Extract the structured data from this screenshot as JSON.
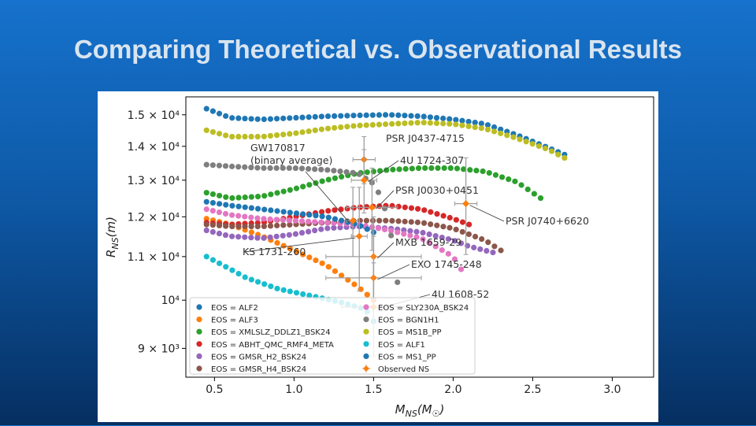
{
  "slide": {
    "title": "Comparing Theoretical vs. Observational Results"
  },
  "chart_data": {
    "type": "scatter",
    "xlabel": "M_NS(M☉)",
    "ylabel": "R_NS(m)",
    "xlim": [
      0.32,
      3.26
    ],
    "ylim": [
      8450,
      15600
    ],
    "y_scale": "log",
    "grid": false,
    "legend_position": "lower-left",
    "x_ticks": [
      "0.5",
      "1.0",
      "1.5",
      "2.0",
      "2.5",
      "3.0"
    ],
    "y_ticks": [
      "9 × 10³",
      "10⁴",
      "1.1 × 10⁴",
      "1.2 × 10⁴",
      "1.3 × 10⁴",
      "1.4 × 10⁴",
      "1.5 × 10⁴"
    ],
    "x_tick_values": [
      0.5,
      1.0,
      1.5,
      2.0,
      2.5,
      3.0
    ],
    "y_tick_values": [
      9000,
      10000,
      11000,
      12000,
      13000,
      14000,
      15000
    ],
    "series": [
      {
        "name": "EOS = ALF2",
        "color": "#1f77b4",
        "x": [
          0.45,
          0.6,
          0.8,
          1.0,
          1.2,
          1.4,
          1.6,
          1.8,
          2.0,
          2.2,
          2.4,
          2.6,
          2.7
        ],
        "y": [
          15200,
          14900,
          14850,
          14900,
          14950,
          14980,
          15000,
          14950,
          14850,
          14700,
          14350,
          13950,
          13750
        ]
      },
      {
        "name": "EOS = ALF3",
        "color": "#ff7f0e",
        "x": [
          0.45,
          0.6,
          0.8,
          1.0,
          1.2,
          1.4,
          1.5
        ],
        "y": [
          11950,
          11800,
          11500,
          11150,
          10800,
          10300,
          10000
        ]
      },
      {
        "name": "EOS = XMLSLZ_DDLZ1_BSK24",
        "color": "#2ca02c",
        "x": [
          0.45,
          0.6,
          0.8,
          1.0,
          1.2,
          1.4,
          1.6,
          1.8,
          2.0,
          2.2,
          2.4,
          2.55
        ],
        "y": [
          12650,
          12500,
          12550,
          12750,
          13000,
          13200,
          13300,
          13350,
          13350,
          13250,
          12950,
          12500
        ]
      },
      {
        "name": "EOS = ABHT_QMC_RMF4_META",
        "color": "#d62728",
        "x": [
          0.45,
          0.6,
          0.8,
          1.0,
          1.2,
          1.4,
          1.6,
          1.8,
          2.0,
          2.1
        ],
        "y": [
          11850,
          11800,
          11850,
          12000,
          12150,
          12250,
          12300,
          12200,
          11950,
          11800
        ]
      },
      {
        "name": "EOS = GMSR_H2_BSK24",
        "color": "#9467bd",
        "x": [
          0.45,
          0.6,
          0.8,
          1.0,
          1.2,
          1.4,
          1.6,
          1.8,
          2.0,
          2.1,
          2.25
        ],
        "y": [
          11650,
          11500,
          11450,
          11550,
          11700,
          11750,
          11700,
          11600,
          11400,
          11250,
          11100
        ]
      },
      {
        "name": "EOS = GMSR_H4_BSK24",
        "color": "#8c564b",
        "x": [
          0.45,
          0.6,
          0.8,
          1.0,
          1.2,
          1.4,
          1.6,
          1.8,
          2.0,
          2.2,
          2.3
        ],
        "y": [
          11800,
          11750,
          11750,
          11800,
          11850,
          11900,
          11900,
          11850,
          11700,
          11400,
          11150
        ]
      },
      {
        "name": "EOS = SLY230A_BSK24",
        "color": "#e377c2",
        "x": [
          0.45,
          0.6,
          0.8,
          1.0,
          1.2,
          1.4,
          1.6,
          1.8,
          2.0,
          2.05
        ],
        "y": [
          12200,
          12050,
          11950,
          11900,
          11850,
          11800,
          11650,
          11450,
          11000,
          10700
        ]
      },
      {
        "name": "EOS = BGN1H1",
        "color": "#7f7f7f",
        "x": [
          0.45,
          0.6,
          0.8,
          1.0,
          1.2,
          1.4,
          1.5,
          1.55,
          1.6,
          1.65
        ],
        "y": [
          13450,
          13400,
          13350,
          13350,
          13300,
          13200,
          12900,
          12500,
          11800,
          10400
        ]
      },
      {
        "name": "EOS = MS1B_PP",
        "color": "#bcbd22",
        "x": [
          0.45,
          0.6,
          0.8,
          1.0,
          1.2,
          1.4,
          1.6,
          1.8,
          2.0,
          2.2,
          2.4,
          2.6,
          2.7
        ],
        "y": [
          14500,
          14300,
          14300,
          14400,
          14550,
          14650,
          14700,
          14750,
          14700,
          14550,
          14250,
          13900,
          13650
        ]
      },
      {
        "name": "EOS = ALF1",
        "color": "#17becf",
        "x": [
          0.45,
          0.55,
          0.7,
          0.9,
          1.1,
          1.3,
          1.45,
          1.5
        ],
        "y": [
          11000,
          10800,
          10500,
          10250,
          10100,
          9950,
          9800,
          9550
        ]
      },
      {
        "name": "EOS = MS1_PP",
        "color": "#1f77b4",
        "x": [
          0.45,
          0.6,
          0.8,
          1.0,
          1.2,
          1.4,
          1.5
        ],
        "y": [
          12400,
          12300,
          12200,
          12100,
          12000,
          11800,
          11600
        ]
      }
    ],
    "observed": {
      "name": "Observed NS",
      "color": "#ff7f0e",
      "error_color": "#9e9e9e",
      "points": [
        {
          "label": "PSR J0437-4715",
          "x": 1.44,
          "y": 13600,
          "xerr": 0.07,
          "yerr": 700
        },
        {
          "label": "4U 1724-307",
          "x": 1.44,
          "y": 13000,
          "xerr": 0.08,
          "yerr": 900
        },
        {
          "label": "PSR J0030+0451",
          "x": 1.49,
          "y": 12250,
          "xerr": 0.16,
          "yerr": 1100
        },
        {
          "label": "PSR J0740+6620",
          "x": 2.08,
          "y": 12350,
          "xerr": 0.07,
          "yerr": 1300
        },
        {
          "label": "GW170817\n(binary average)",
          "x": 1.37,
          "y": 11900,
          "xerr": 0.04,
          "yerr": 900
        },
        {
          "label": "KS 1731-260",
          "x": 1.41,
          "y": 11500,
          "xerr": 0.05,
          "yerr": 1300
        },
        {
          "label": "MXB 1659-29",
          "x": 1.5,
          "y": 11000,
          "xerr": 0.3,
          "yerr": 1000
        },
        {
          "label": "EXO 1745-248",
          "x": 1.5,
          "y": 10500,
          "xerr": 0.3,
          "yerr": 1000
        },
        {
          "label": "4U 1608-52",
          "x": 1.5,
          "y": 9850,
          "xerr": 0.2,
          "yerr": 1000
        }
      ]
    }
  }
}
